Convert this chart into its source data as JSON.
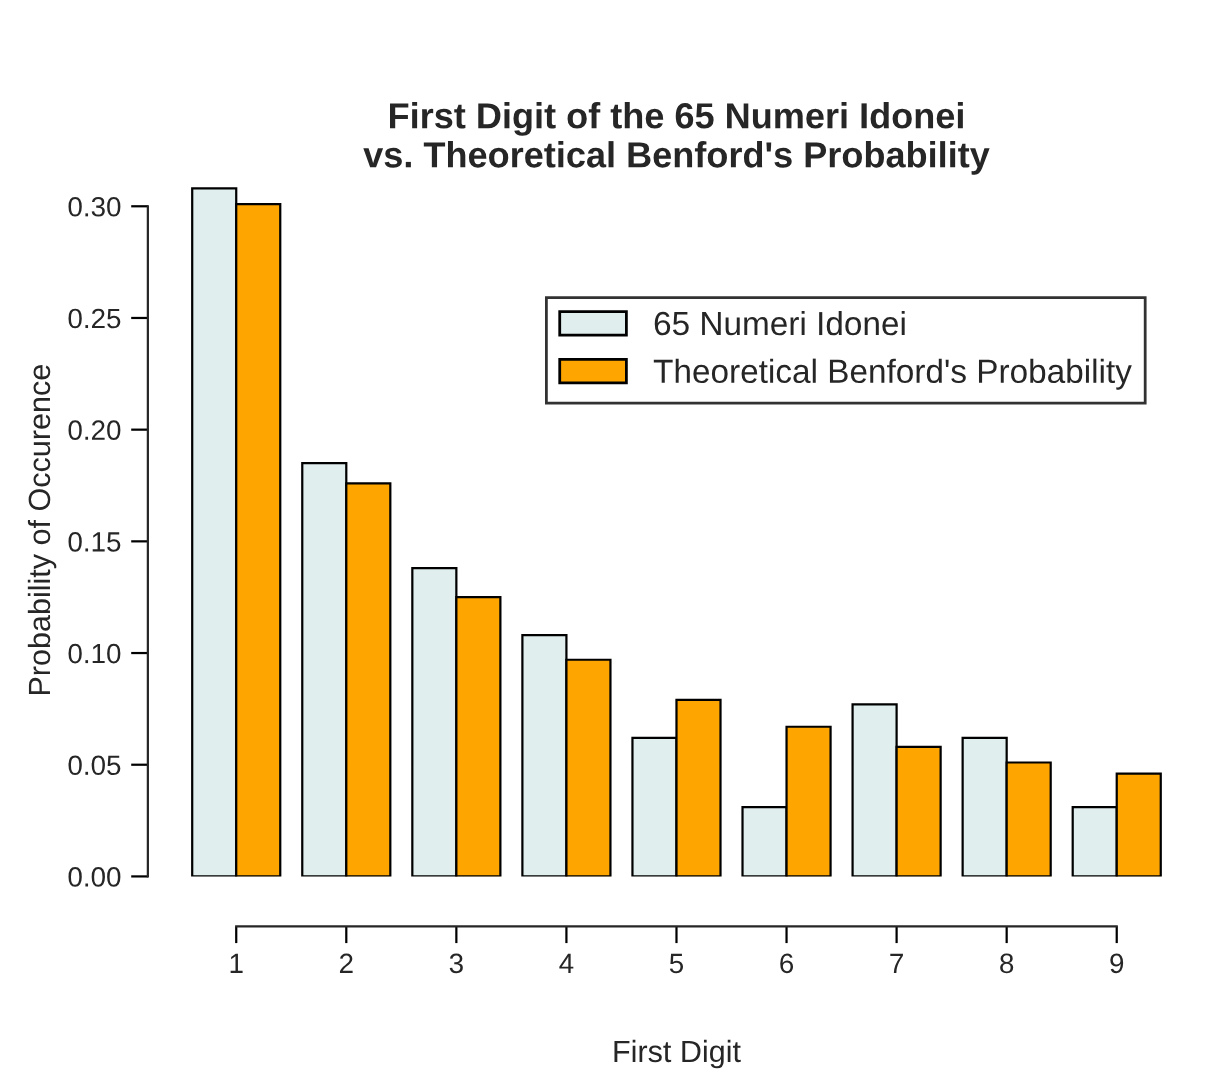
{
  "chart_data": {
    "type": "bar",
    "title": "First Digit of the 65 Numeri Idonei\nvs. Theoretical Benford's Probability",
    "xlabel": "First Digit",
    "ylabel": "Probability of Occurence",
    "categories": [
      "1",
      "2",
      "3",
      "4",
      "5",
      "6",
      "7",
      "8",
      "9"
    ],
    "series": [
      {
        "name": "65 Numeri Idonei",
        "color": "#e0eeee",
        "values": [
          0.308,
          0.185,
          0.138,
          0.108,
          0.062,
          0.031,
          0.077,
          0.062,
          0.031
        ]
      },
      {
        "name": "Theoretical Benford's Probability",
        "color": "#ffa500",
        "values": [
          0.301,
          0.176,
          0.125,
          0.097,
          0.079,
          0.067,
          0.058,
          0.051,
          0.046
        ]
      }
    ],
    "ylim": [
      0,
      0.31
    ],
    "yticks": [
      {
        "value": 0,
        "label": "0.00"
      },
      {
        "value": 0.05,
        "label": "0.05"
      },
      {
        "value": 0.1,
        "label": "0.10"
      },
      {
        "value": 0.15,
        "label": "0.15"
      },
      {
        "value": 0.2,
        "label": "0.20"
      },
      {
        "value": 0.25,
        "label": "0.25"
      },
      {
        "value": 0.3,
        "label": "0.30"
      }
    ],
    "legend": "top right",
    "grid": false
  }
}
